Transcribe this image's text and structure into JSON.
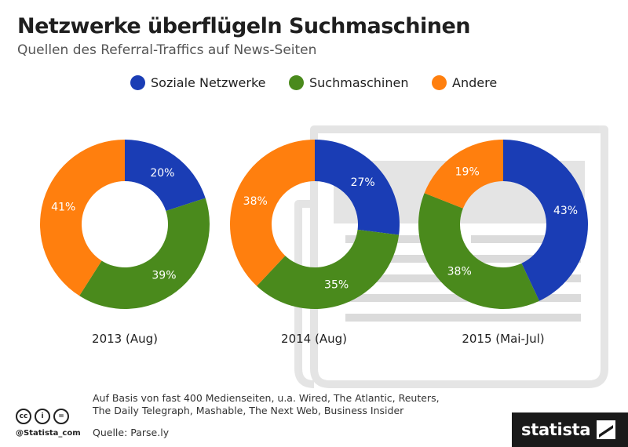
{
  "header": {
    "title": "Netzwerke überflügeln Suchmaschinen",
    "subtitle": "Quellen des Referral-Traffics auf News-Seiten"
  },
  "colors": {
    "social": "#1a3db5",
    "search": "#4a8a1c",
    "other": "#ff7f0e"
  },
  "chart_data": {
    "type": "donut",
    "title": "Netzwerke überflügeln Suchmaschinen",
    "subtitle": "Quellen des Referral-Traffics auf News-Seiten",
    "legend": [
      "Soziale Netzwerke",
      "Suchmaschinen",
      "Andere"
    ],
    "legend_position": "top-center",
    "charts": [
      {
        "label": "2013 (Aug)",
        "slices": [
          {
            "name": "Soziale Netzwerke",
            "value": 20,
            "label": "20%"
          },
          {
            "name": "Suchmaschinen",
            "value": 39,
            "label": "39%"
          },
          {
            "name": "Andere",
            "value": 41,
            "label": "41%"
          }
        ]
      },
      {
        "label": "2014 (Aug)",
        "slices": [
          {
            "name": "Soziale Netzwerke",
            "value": 27,
            "label": "27%"
          },
          {
            "name": "Suchmaschinen",
            "value": 35,
            "label": "35%"
          },
          {
            "name": "Andere",
            "value": 38,
            "label": "38%"
          }
        ]
      },
      {
        "label": "2015 (Mai-Jul)",
        "slices": [
          {
            "name": "Soziale Netzwerke",
            "value": 43,
            "label": "43%"
          },
          {
            "name": "Suchmaschinen",
            "value": 38,
            "label": "38%"
          },
          {
            "name": "Andere",
            "value": 19,
            "label": "19%"
          }
        ]
      }
    ]
  },
  "footer": {
    "note_line1": "Auf Basis von fast 400 Medienseiten, u.a. Wired, The Atlantic, Reuters,",
    "note_line2": "The Daily Telegraph, Mashable, The Next Web, Business Insider",
    "source": "Quelle: Parse.ly",
    "handle": "@Statista_com",
    "cc_icons": [
      "cc",
      "by",
      "nd"
    ]
  },
  "brand": {
    "name": "statista",
    "icon": "statista-logo-icon"
  },
  "background_icon": "news-paper-icon"
}
